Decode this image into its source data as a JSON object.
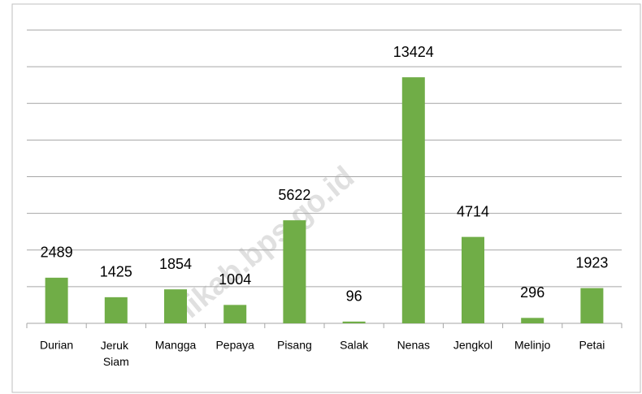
{
  "chart_data": {
    "type": "bar",
    "categories": [
      "Durian",
      "Jeruk Siam",
      "Mangga",
      "Pepaya",
      "Pisang",
      "Salak",
      "Nenas",
      "Jengkol",
      "Melinjo",
      "Petai"
    ],
    "values": [
      2489,
      1425,
      1854,
      1004,
      5622,
      96,
      13424,
      4714,
      296,
      1923
    ],
    "color": "#70ad47",
    "ylim": [
      0,
      16000
    ],
    "yticks": [
      0,
      2000,
      4000,
      6000,
      8000,
      10000,
      12000,
      14000,
      16000
    ],
    "grid": true,
    "watermark": "likab.bps.go.id"
  }
}
